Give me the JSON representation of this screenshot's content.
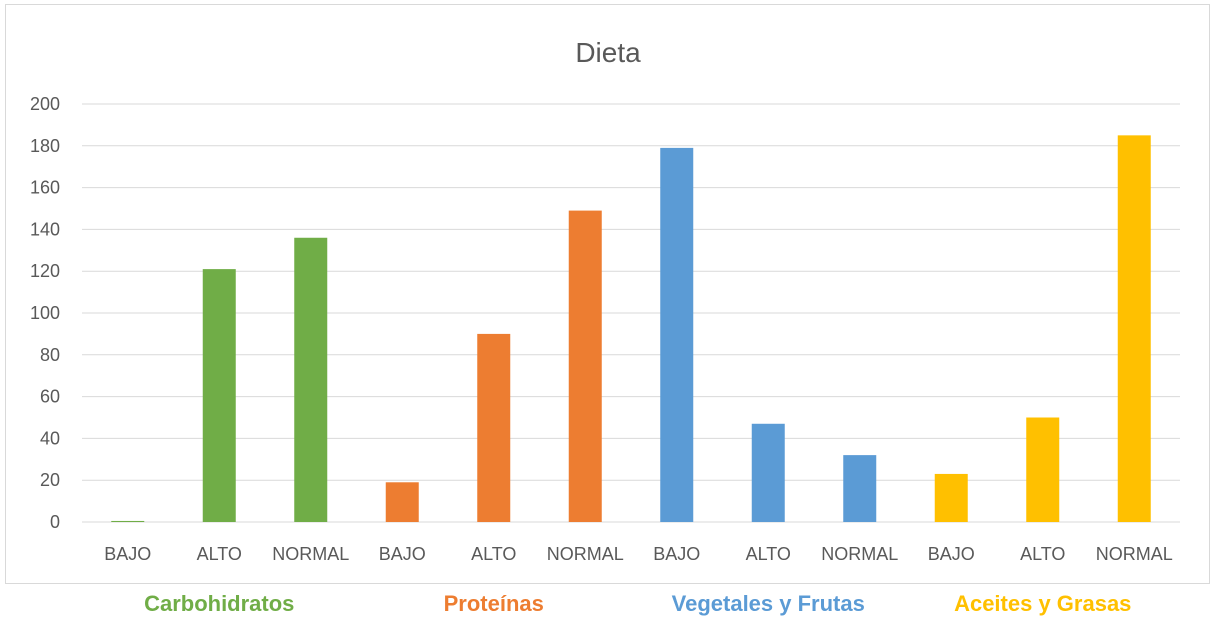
{
  "chart_data": {
    "type": "bar",
    "title": "Dieta",
    "categories": [
      "BAJO",
      "ALTO",
      "NORMAL",
      "BAJO",
      "ALTO",
      "NORMAL",
      "BAJO",
      "ALTO",
      "NORMAL",
      "BAJO",
      "ALTO",
      "NORMAL"
    ],
    "values": [
      0.5,
      121,
      136,
      19,
      90,
      149,
      179,
      47,
      32,
      23,
      50,
      185
    ],
    "bar_colors": [
      "#70AD47",
      "#70AD47",
      "#70AD47",
      "#ED7D31",
      "#ED7D31",
      "#ED7D31",
      "#5B9BD5",
      "#5B9BD5",
      "#5B9BD5",
      "#FFC000",
      "#FFC000",
      "#FFC000"
    ],
    "ylim": [
      0,
      200
    ],
    "yticks": [
      0,
      20,
      40,
      60,
      80,
      100,
      120,
      140,
      160,
      180,
      200
    ],
    "grid": true,
    "legend": "none",
    "groups": [
      {
        "name": "Carbohidratos",
        "color": "#70AD47"
      },
      {
        "name": "Proteínas",
        "color": "#ED7D31"
      },
      {
        "name": "Vegetales y Frutas",
        "color": "#5B9BD5"
      },
      {
        "name": "Aceites y Grasas",
        "color": "#FFC000"
      }
    ]
  }
}
